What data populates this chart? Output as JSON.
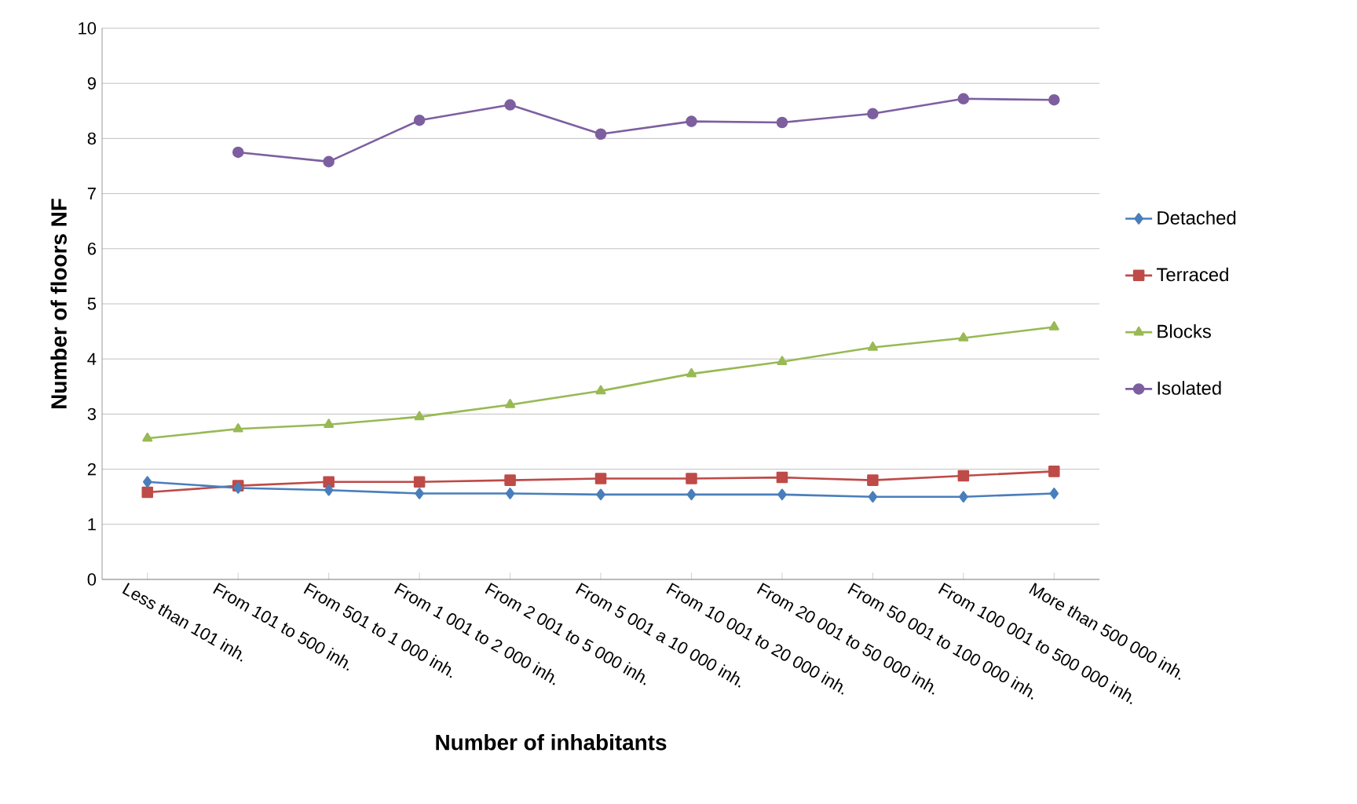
{
  "chart_data": {
    "type": "line",
    "xlabel": "Number of inhabitants",
    "ylabel": "Number of floors NF",
    "categories": [
      "Less than 101 inh.",
      "From 101 to 500 inh.",
      "From 501 to  1 000 inh.",
      "From 1 001 to 2 000 inh.",
      "From 2 001 to 5 000 inh.",
      "From 5 001 a 10 000 inh.",
      "From 10 001 to 20 000 inh.",
      "From 20 001 to 50 000 inh.",
      "From 50 001 to 100 000 inh.",
      "From 100 001 to 500 000 inh.",
      "More than 500 000 inh."
    ],
    "series": [
      {
        "name": "Detached",
        "color": "#4a7ebb",
        "marker": "diamond",
        "values": [
          1.77,
          1.66,
          1.62,
          1.56,
          1.56,
          1.54,
          1.54,
          1.54,
          1.5,
          1.5,
          1.56
        ]
      },
      {
        "name": "Terraced",
        "color": "#be4b48",
        "marker": "square",
        "values": [
          1.58,
          1.7,
          1.77,
          1.77,
          1.8,
          1.83,
          1.83,
          1.85,
          1.8,
          1.88,
          1.96
        ]
      },
      {
        "name": "Blocks",
        "color": "#98b954",
        "marker": "triangle",
        "values": [
          2.56,
          2.73,
          2.81,
          2.95,
          3.17,
          3.42,
          3.73,
          3.95,
          4.21,
          4.38,
          4.58
        ]
      },
      {
        "name": "Isolated",
        "color": "#7d5fa0",
        "marker": "circle",
        "values": [
          null,
          7.75,
          7.58,
          8.33,
          8.61,
          8.08,
          8.31,
          8.29,
          8.45,
          8.72,
          8.7
        ]
      }
    ],
    "ylim": [
      0,
      10
    ],
    "yticks": [
      0,
      1,
      2,
      3,
      4,
      5,
      6,
      7,
      8,
      9,
      10
    ],
    "grid": "y",
    "legend": "right",
    "line_style": "solid"
  }
}
